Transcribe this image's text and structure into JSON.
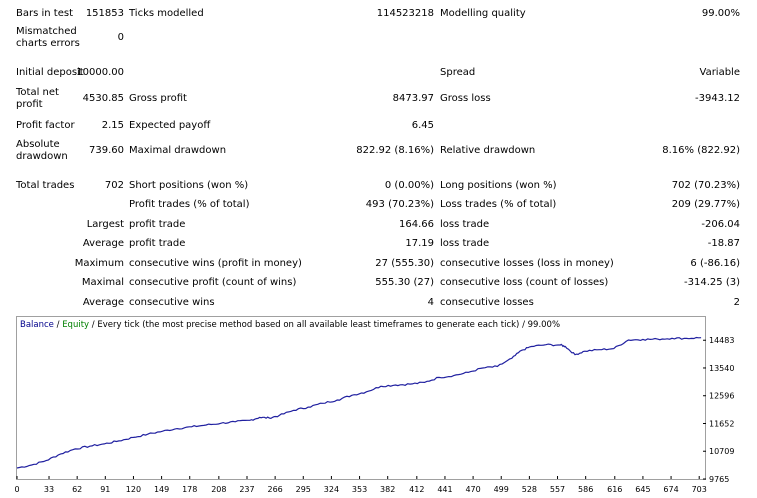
{
  "report": {
    "bars_in_test_label": "Bars in test",
    "bars_in_test_value": "151853",
    "ticks_modelled_label": "Ticks modelled",
    "ticks_modelled_value": "114523218",
    "modelling_quality_label": "Modelling quality",
    "modelling_quality_value": "99.00%",
    "mismatched_label": "Mismatched charts errors",
    "mismatched_value": "0",
    "initial_deposit_label": "Initial deposit",
    "initial_deposit_value": "10000.00",
    "spread_label": "Spread",
    "spread_value": "Variable",
    "total_net_profit_label": "Total net profit",
    "total_net_profit_value": "4530.85",
    "gross_profit_label": "Gross profit",
    "gross_profit_value": "8473.97",
    "gross_loss_label": "Gross loss",
    "gross_loss_value": "-3943.12",
    "profit_factor_label": "Profit factor",
    "profit_factor_value": "2.15",
    "expected_payoff_label": "Expected payoff",
    "expected_payoff_value": "6.45",
    "absolute_drawdown_label": "Absolute drawdown",
    "absolute_drawdown_value": "739.60",
    "maximal_drawdown_label": "Maximal drawdown",
    "maximal_drawdown_value": "822.92 (8.16%)",
    "relative_drawdown_label": "Relative drawdown",
    "relative_drawdown_value": "8.16% (822.92)",
    "total_trades_label": "Total trades",
    "total_trades_value": "702",
    "short_positions_label": "Short positions (won %)",
    "short_positions_value": "0 (0.00%)",
    "long_positions_label": "Long positions (won %)",
    "long_positions_value": "702 (70.23%)",
    "profit_trades_label": "Profit trades (% of total)",
    "profit_trades_value": "493 (70.23%)",
    "loss_trades_label": "Loss trades (% of total)",
    "loss_trades_value": "209 (29.77%)",
    "largest_label": "Largest",
    "largest_profit_label": "profit trade",
    "largest_profit_value": "164.66",
    "largest_loss_label": "loss trade",
    "largest_loss_value": "-206.04",
    "average_label": "Average",
    "average_profit_label": "profit trade",
    "average_profit_value": "17.19",
    "average_loss_label": "loss trade",
    "average_loss_value": "-18.87",
    "maximum_label": "Maximum",
    "max_consec_wins_label": "consecutive wins (profit in money)",
    "max_consec_wins_value": "27 (555.30)",
    "max_consec_losses_label": "consecutive losses (loss in money)",
    "max_consec_losses_value": "6 (-86.16)",
    "maximal_label": "Maximal",
    "maximal_consec_profit_label": "consecutive profit (count of wins)",
    "maximal_consec_profit_value": "555.30 (27)",
    "maximal_consec_loss_label": "consecutive loss (count of losses)",
    "maximal_consec_loss_value": "-314.25 (3)",
    "average2_label": "Average",
    "avg_consec_wins_label": "consecutive wins",
    "avg_consec_wins_value": "4",
    "avg_consec_losses_label": "consecutive losses",
    "avg_consec_losses_value": "2"
  },
  "chart_caption": {
    "balance": "Balance",
    "sep1": " / ",
    "equity": "Equity",
    "rest": " / Every tick (the most precise method based on all available least timeframes to generate each tick) / 99.00%"
  },
  "colors": {
    "balance": "#00008b",
    "equity": "#008000",
    "line": "#2020a0"
  },
  "chart_data": {
    "type": "line",
    "title": "",
    "xlabel": "",
    "ylabel": "",
    "x_ticks": [
      "0",
      "33",
      "62",
      "91",
      "120",
      "149",
      "178",
      "208",
      "237",
      "266",
      "295",
      "324",
      "353",
      "382",
      "412",
      "441",
      "470",
      "499",
      "528",
      "557",
      "586",
      "616",
      "645",
      "674",
      "703"
    ],
    "y_ticks": [
      "14483",
      "13540",
      "12596",
      "11652",
      "10709",
      "9765"
    ],
    "xlim": [
      0,
      710
    ],
    "ylim": [
      9765,
      14729
    ],
    "series": [
      {
        "name": "Balance",
        "x": [
          0,
          15,
          30,
          45,
          60,
          75,
          90,
          105,
          120,
          135,
          150,
          165,
          180,
          195,
          210,
          225,
          240,
          250,
          260,
          270,
          285,
          300,
          315,
          330,
          345,
          360,
          375,
          390,
          405,
          420,
          435,
          450,
          465,
          480,
          495,
          510,
          520,
          530,
          545,
          560,
          565,
          575,
          585,
          600,
          615,
          630,
          645,
          660,
          675,
          690,
          705
        ],
        "y": [
          10140,
          10240,
          10390,
          10620,
          10790,
          10880,
          10960,
          11060,
          11180,
          11290,
          11390,
          11480,
          11540,
          11600,
          11660,
          11710,
          11760,
          11860,
          11840,
          11920,
          12100,
          12210,
          12340,
          12450,
          12610,
          12730,
          12920,
          12960,
          12990,
          13050,
          13220,
          13280,
          13390,
          13540,
          13590,
          13870,
          14140,
          14270,
          14330,
          14320,
          14270,
          13990,
          14110,
          14160,
          14200,
          14490,
          14510,
          14520,
          14550,
          14545,
          14570
        ]
      }
    ]
  }
}
